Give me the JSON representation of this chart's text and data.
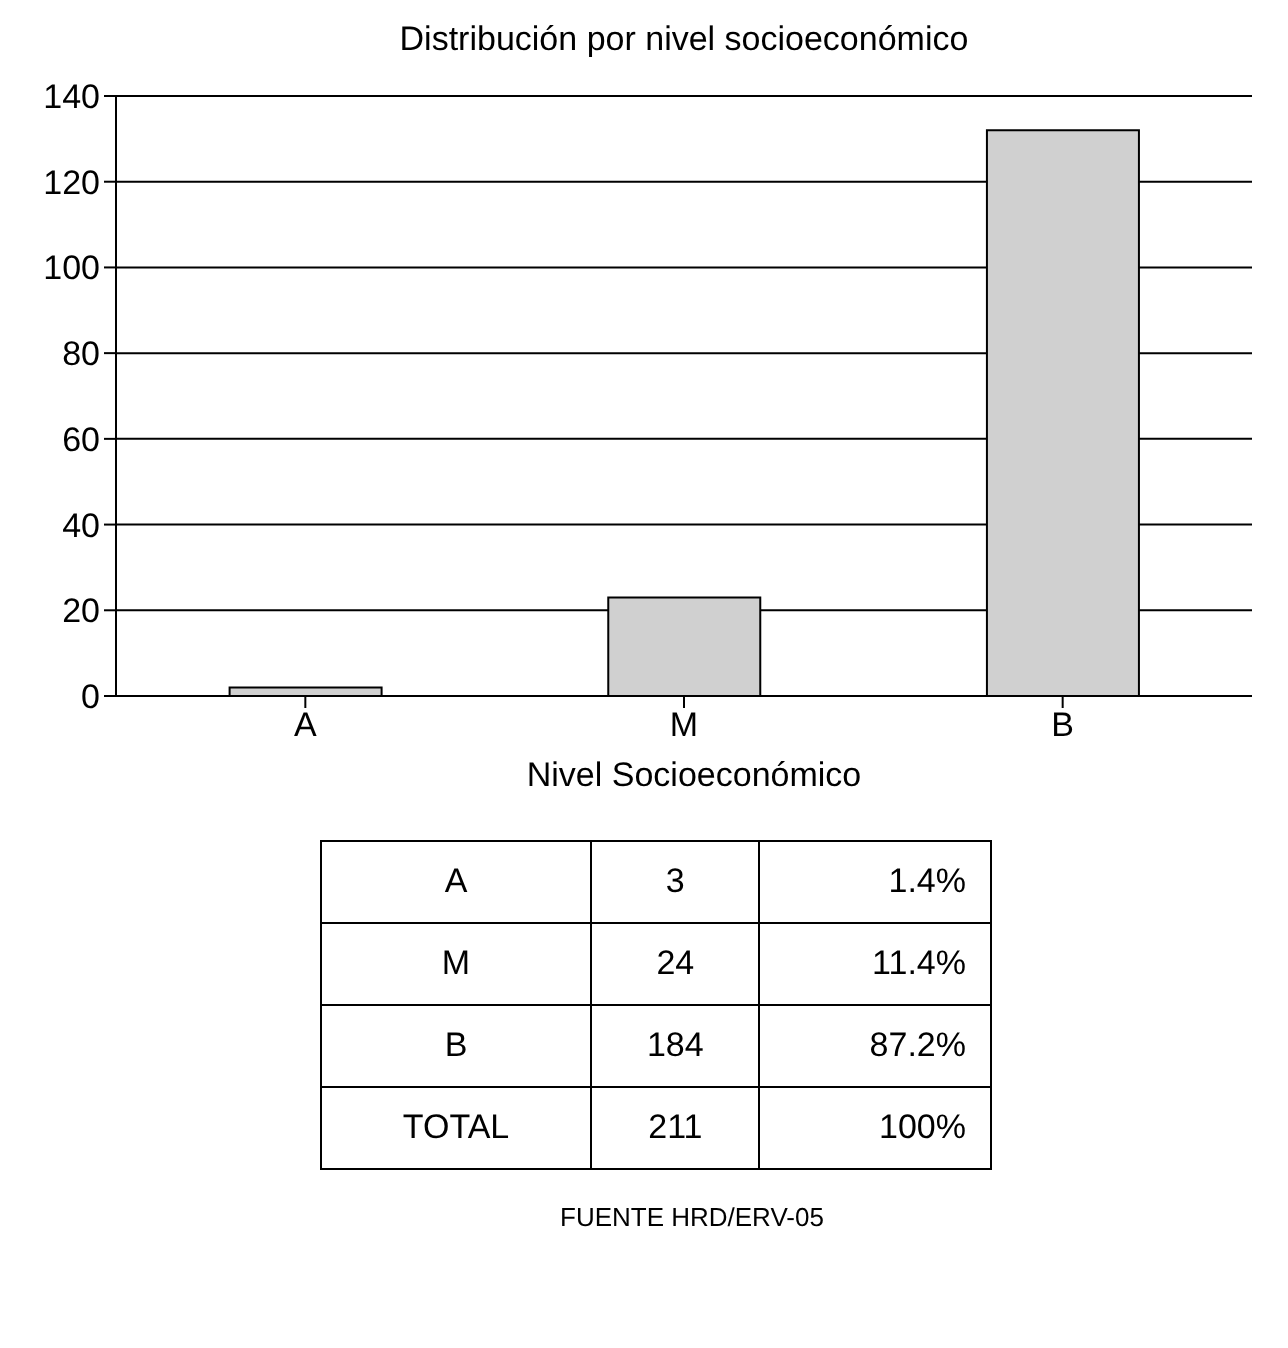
{
  "chart_data": [
    {
      "type": "bar",
      "title": "Distribución por nivel socioeconómico",
      "xlabel": "Nivel Socioeconómico",
      "categories": [
        "A",
        "M",
        "B"
      ],
      "values": [
        2,
        23,
        132
      ],
      "color": "#d0d0d0",
      "ylim": [
        0,
        140
      ],
      "yticks": [
        0,
        20,
        40,
        60,
        80,
        100,
        120,
        140
      ],
      "grid": "y"
    },
    {
      "type": "other",
      "categories": [
        "A",
        "M",
        "B",
        "TOTAL"
      ],
      "series": [
        {
          "values": [
            3,
            24,
            184,
            211
          ]
        },
        {
          "values": [
            1.4,
            11.4,
            87.2,
            100
          ],
          "value_labels": [
            "1.4%",
            "11.4%",
            "87.2%",
            "100%"
          ]
        }
      ],
      "data_labels": true,
      "annotations": [
        "FUENTE HRD/ERV-05"
      ]
    }
  ]
}
